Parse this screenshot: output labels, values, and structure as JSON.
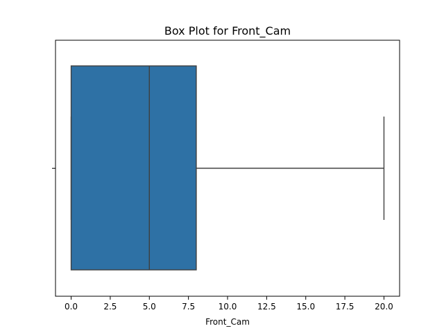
{
  "chart_data": {
    "type": "box",
    "title": "Box Plot for Front_Cam",
    "xlabel": "Front_Cam",
    "ylabel": "",
    "orientation": "horizontal",
    "xlim": [
      -1.0,
      21.0
    ],
    "xticks": [
      0.0,
      2.5,
      5.0,
      7.5,
      10.0,
      12.5,
      15.0,
      17.5,
      20.0
    ],
    "xtick_labels": [
      "0.0",
      "2.5",
      "5.0",
      "7.5",
      "10.0",
      "12.5",
      "15.0",
      "17.5",
      "20.0"
    ],
    "grid": false,
    "box": {
      "min": 0.0,
      "q1": 0.0,
      "median": 5.0,
      "q3": 8.0,
      "max": 20.0,
      "fill_color": "#2e71a5",
      "line_color": "#3f3f3f"
    }
  }
}
